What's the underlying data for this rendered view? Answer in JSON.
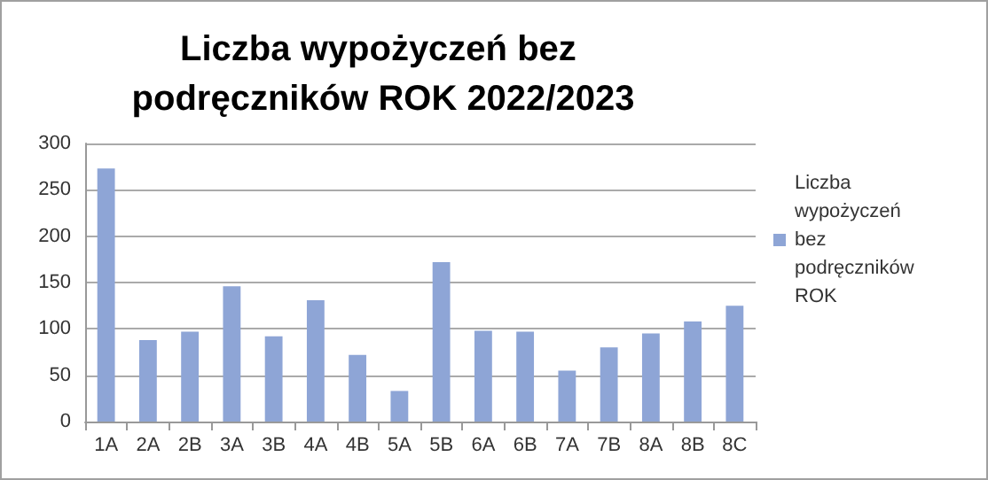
{
  "chart_data": {
    "type": "bar",
    "title": "Liczba wypożyczeń bez podręczników ROK 2022/2023",
    "categories": [
      "1A",
      "2A",
      "2B",
      "3A",
      "3B",
      "4A",
      "4B",
      "5A",
      "5B",
      "6A",
      "6B",
      "7A",
      "7B",
      "8A",
      "8B",
      "8C"
    ],
    "series": [
      {
        "name": "Liczba wypożyczeń bez podręczników ROK",
        "color": "#8ea5d6",
        "values": [
          273,
          88,
          97,
          146,
          92,
          131,
          72,
          33,
          172,
          98,
          97,
          55,
          80,
          95,
          108,
          125
        ]
      }
    ],
    "ylim": [
      0,
      300
    ],
    "yticks": [
      0,
      50,
      100,
      150,
      200,
      250,
      300
    ],
    "grid": "y",
    "legend": "right"
  }
}
